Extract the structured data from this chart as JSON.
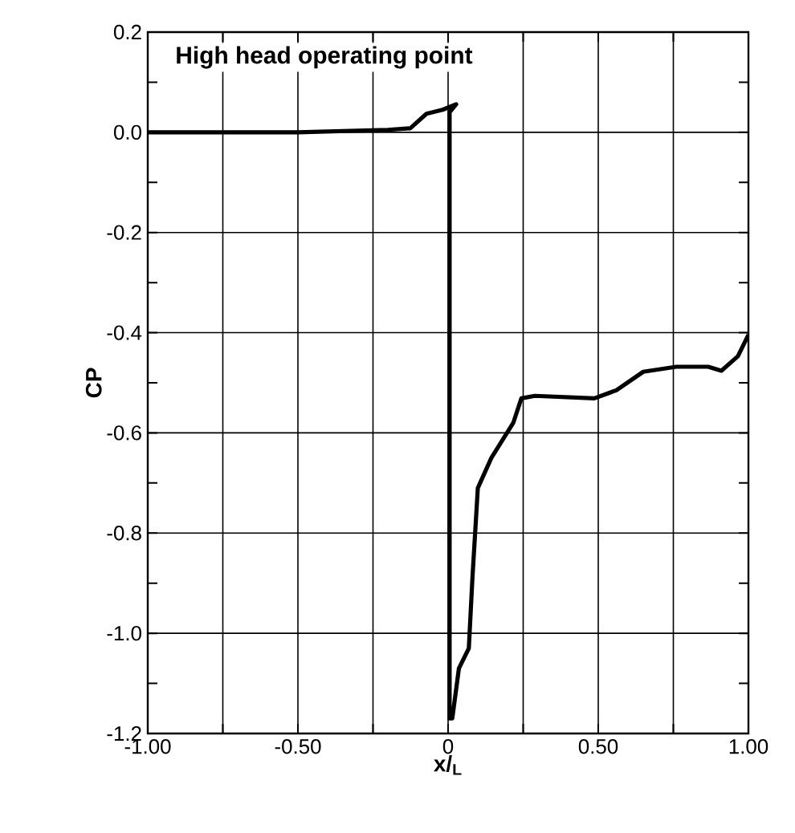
{
  "chart_data": {
    "type": "line",
    "title": "High head operating point",
    "xlabel": "x/$_{L}$",
    "ylabel": "CP",
    "xlim": [
      -1,
      1
    ],
    "ylim": [
      -1.2,
      0.2
    ],
    "xticks": [
      {
        "value": -1,
        "label": "-1.00"
      },
      {
        "value": -0.75,
        "label": null
      },
      {
        "value": -0.5,
        "label": "-0.50"
      },
      {
        "value": -0.25,
        "label": null
      },
      {
        "value": 0,
        "label": "0"
      },
      {
        "value": 0.25,
        "label": null
      },
      {
        "value": 0.5,
        "label": "0.50"
      },
      {
        "value": 0.75,
        "label": null
      },
      {
        "value": 1,
        "label": "1.00"
      }
    ],
    "yticks": [
      -1.2,
      {
        "value": -1.1,
        "label": null
      },
      {
        "value": -1.0,
        "label": "-1.0"
      },
      {
        "value": -0.9,
        "label": null
      },
      -0.8,
      {
        "value": -0.7,
        "label": null
      },
      -0.6,
      {
        "value": -0.5,
        "label": null
      },
      -0.4,
      {
        "value": -0.3,
        "label": null
      },
      -0.2,
      {
        "value": -0.1,
        "label": null
      },
      {
        "value": 0,
        "label": "0.0"
      },
      {
        "value": 0.1,
        "label": null
      },
      0.2
    ],
    "grid": true,
    "marker": "none",
    "line_style": "solid",
    "series": [
      {
        "color": "#000000",
        "x": [
          -1,
          -0.5,
          -0.2,
          -0.126,
          -0.072,
          -0.018,
          0.027,
          0.005,
          0.005,
          0.014,
          0.036,
          0.069,
          0.081,
          0.099,
          0.144,
          0.217,
          0.244,
          0.289,
          0.487,
          0.56,
          0.65,
          0.76,
          0.866,
          0.91,
          0.965,
          1.0
        ],
        "values": [
          0,
          0,
          0.005,
          0.008,
          0.037,
          0.045,
          0.056,
          0.04,
          -1.17,
          -1.17,
          -1.07,
          -1.03,
          -0.89,
          -0.71,
          -0.65,
          -0.58,
          -0.531,
          -0.526,
          -0.531,
          -0.515,
          -0.478,
          -0.468,
          -0.468,
          -0.476,
          -0.447,
          -0.404
        ]
      }
    ]
  }
}
